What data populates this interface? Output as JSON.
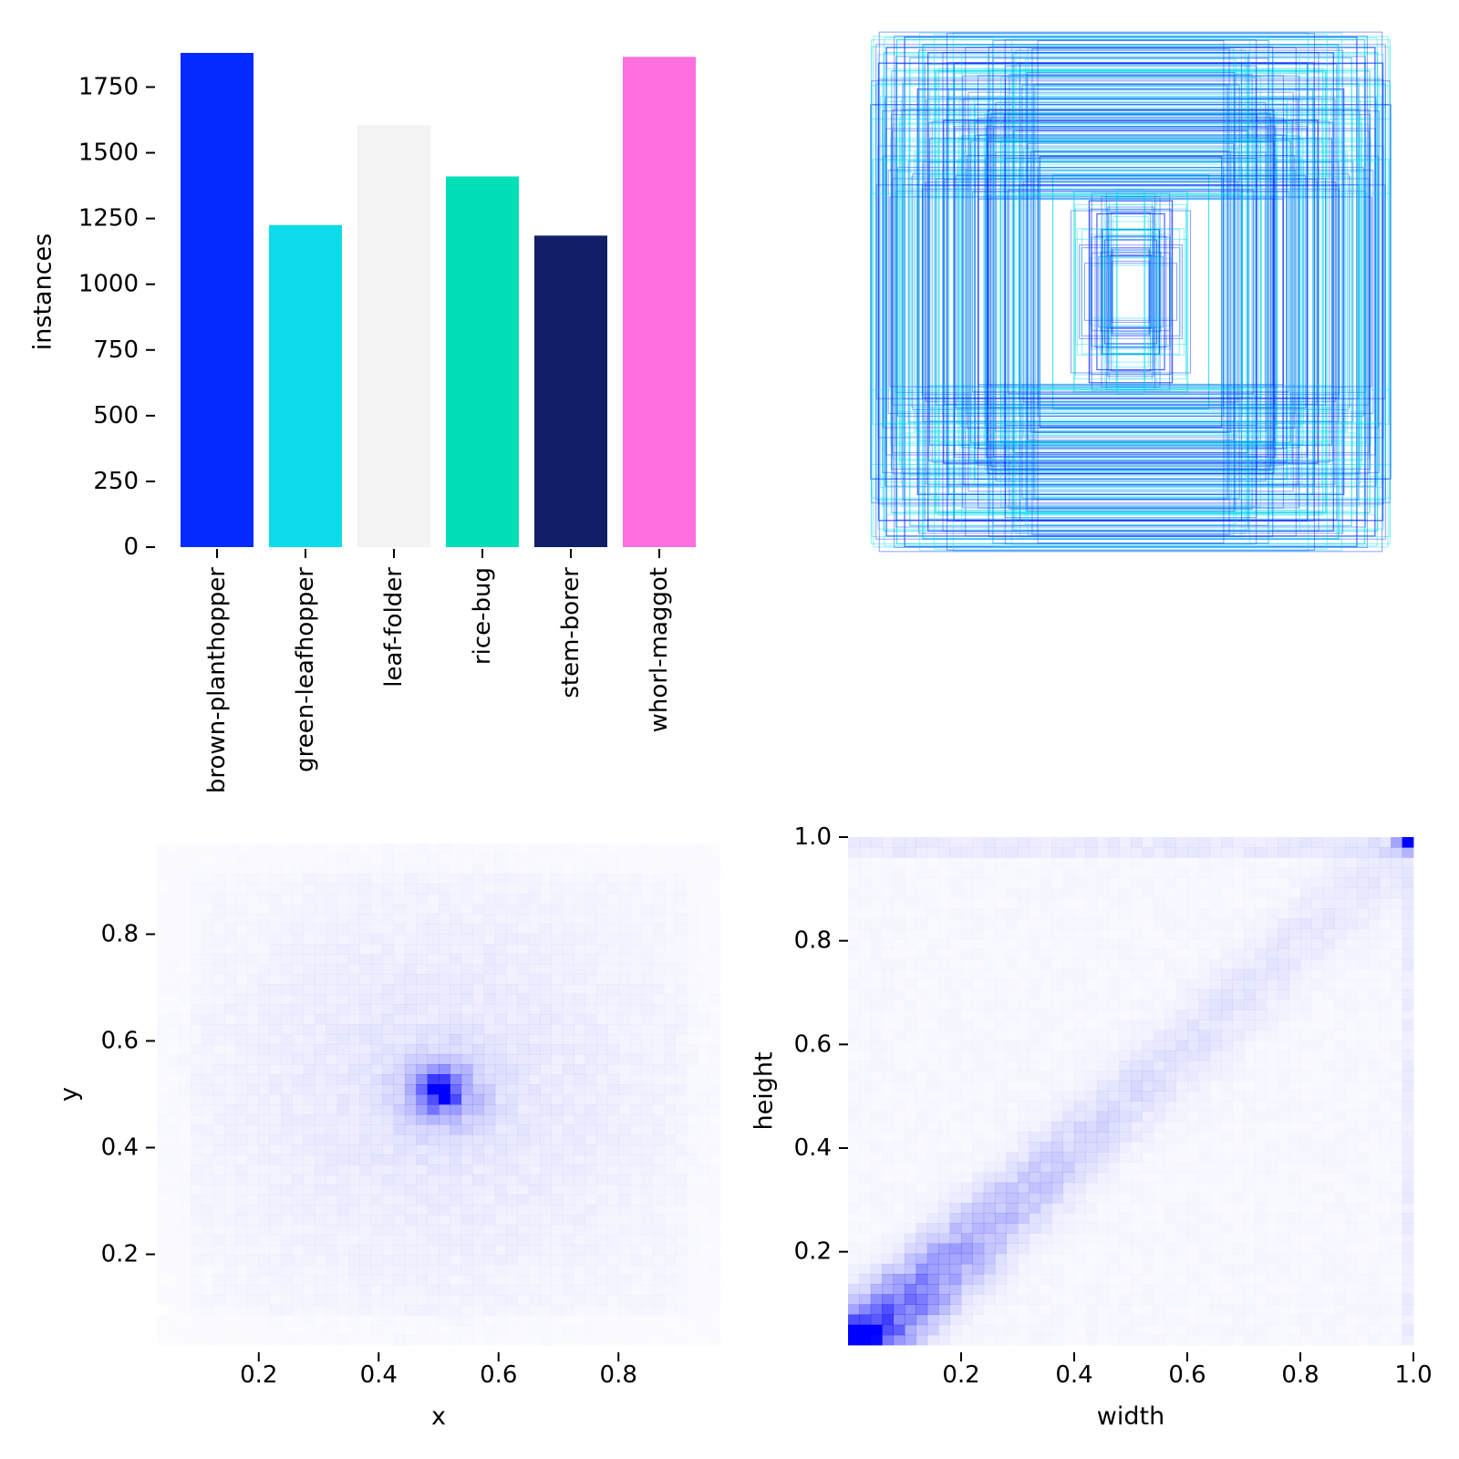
{
  "chart_data": [
    {
      "type": "bar",
      "panel": "class-instances",
      "ylabel": "instances",
      "categories": [
        "brown-planthopper",
        "green-leafhopper",
        "leaf-folder",
        "rice-bug",
        "stem-borer",
        "whorl-maggot"
      ],
      "values": [
        1880,
        1225,
        1605,
        1410,
        1185,
        1865
      ],
      "colors": [
        "#042aff",
        "#0bdbeb",
        "#f3f3f3",
        "#00dfb7",
        "#111f68",
        "#ff6fdd"
      ],
      "ylim": [
        0,
        1880
      ],
      "yticks": [
        0,
        250,
        500,
        750,
        1000,
        1250,
        1500,
        1750
      ],
      "ytick_labels": [
        "0",
        "250",
        "500",
        "750",
        "1000",
        "1250",
        "1500",
        "1750"
      ]
    },
    {
      "type": "box-overlay",
      "panel": "anchor-boxes",
      "description_of_encoding": "centered boxes, size as fraction of panel",
      "boxes": [
        {
          "w": 0.95,
          "h": 0.92,
          "color": "#0bdbeb"
        },
        {
          "w": 0.9,
          "h": 0.97,
          "color": "#0bdbeb"
        },
        {
          "w": 0.98,
          "h": 0.8,
          "color": "#0bdbeb"
        },
        {
          "w": 0.85,
          "h": 0.9,
          "color": "#0bdbeb"
        },
        {
          "w": 0.8,
          "h": 0.95,
          "color": "#0bdbeb"
        },
        {
          "w": 0.92,
          "h": 0.85,
          "color": "#0bdbeb"
        },
        {
          "w": 0.75,
          "h": 0.85,
          "color": "#0bdbeb"
        },
        {
          "w": 0.7,
          "h": 0.78,
          "color": "#0bdbeb"
        },
        {
          "w": 0.88,
          "h": 0.7,
          "color": "#0bdbeb"
        },
        {
          "w": 0.6,
          "h": 0.72,
          "color": "#0bdbeb"
        },
        {
          "w": 0.65,
          "h": 0.6,
          "color": "#0bdbeb"
        },
        {
          "w": 0.5,
          "h": 0.58,
          "color": "#0bdbeb"
        },
        {
          "w": 0.4,
          "h": 0.5,
          "color": "#0bdbeb"
        },
        {
          "w": 0.3,
          "h": 0.45,
          "color": "#0bdbeb"
        },
        {
          "w": 0.97,
          "h": 0.88,
          "color": "#042aff"
        },
        {
          "w": 0.87,
          "h": 0.98,
          "color": "#042aff"
        },
        {
          "w": 1.0,
          "h": 0.72,
          "color": "#042aff"
        },
        {
          "w": 0.94,
          "h": 0.94,
          "color": "#042aff"
        },
        {
          "w": 0.78,
          "h": 0.92,
          "color": "#042aff"
        },
        {
          "w": 0.82,
          "h": 0.78,
          "color": "#042aff"
        },
        {
          "w": 0.68,
          "h": 0.88,
          "color": "#042aff"
        },
        {
          "w": 0.72,
          "h": 0.66,
          "color": "#042aff"
        },
        {
          "w": 0.55,
          "h": 0.7,
          "color": "#042aff"
        },
        {
          "w": 0.45,
          "h": 0.62,
          "color": "#042aff"
        },
        {
          "w": 0.35,
          "h": 0.52,
          "color": "#042aff"
        },
        {
          "w": 0.16,
          "h": 0.35,
          "color": "#042aff"
        },
        {
          "w": 0.13,
          "h": 0.3,
          "color": "#042aff"
        },
        {
          "w": 0.11,
          "h": 0.24,
          "color": "#042aff"
        },
        {
          "w": 0.1,
          "h": 0.2,
          "color": "#042aff"
        },
        {
          "w": 0.08,
          "h": 0.14,
          "color": "#042aff"
        }
      ]
    },
    {
      "type": "heatmap",
      "panel": "center-distribution",
      "xlabel": "x",
      "ylabel": "y",
      "xlim": [
        0.03,
        0.97
      ],
      "ylim": [
        0.03,
        0.97
      ],
      "xticks": [
        0.2,
        0.4,
        0.6,
        0.8
      ],
      "xtick_labels": [
        "0.2",
        "0.4",
        "0.6",
        "0.8"
      ],
      "yticks": [
        0.2,
        0.4,
        0.6,
        0.8
      ],
      "ytick_labels": [
        "0.2",
        "0.4",
        "0.6",
        "0.8"
      ],
      "color": "#0000ff",
      "peak": {
        "x": 0.505,
        "y": 0.505
      }
    },
    {
      "type": "heatmap",
      "panel": "size-distribution",
      "xlabel": "width",
      "ylabel": "height",
      "xlim": [
        0.0,
        1.0
      ],
      "ylim": [
        0.02,
        1.0
      ],
      "xticks": [
        0.2,
        0.4,
        0.6,
        0.8,
        1.0
      ],
      "xtick_labels": [
        "0.2",
        "0.4",
        "0.6",
        "0.8",
        "1.0"
      ],
      "yticks": [
        0.2,
        0.4,
        0.6,
        0.8,
        1.0
      ],
      "ytick_labels": [
        "0.2",
        "0.4",
        "0.6",
        "0.8",
        "1.0"
      ],
      "color": "#0000ff",
      "peak": {
        "x": 0.03,
        "y": 0.04
      },
      "secondary_peak": {
        "x": 0.99,
        "y": 0.99
      }
    }
  ]
}
